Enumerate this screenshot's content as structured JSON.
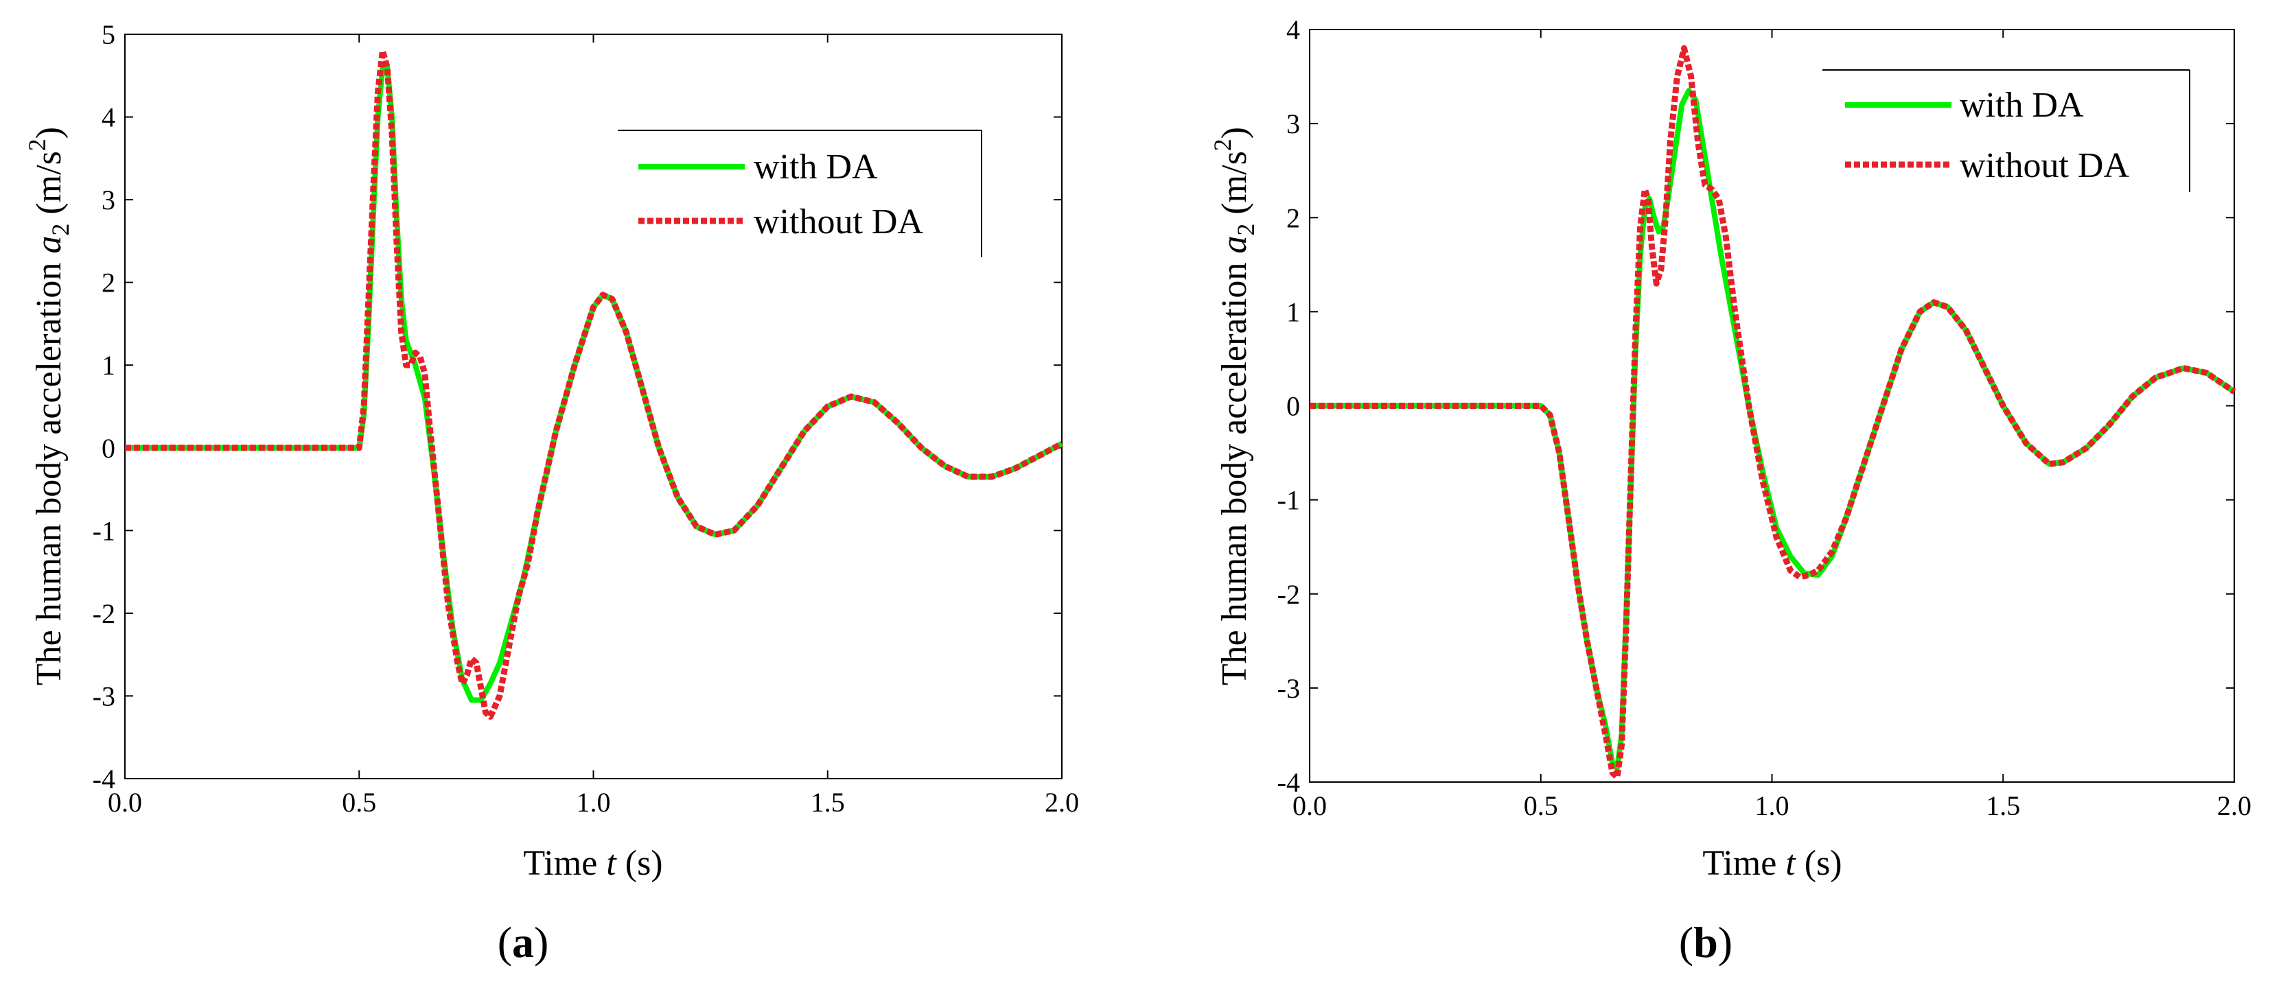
{
  "chart_data": [
    {
      "type": "line",
      "panel_label": "a",
      "x_axis_label": {
        "prefix": "Time ",
        "var": "t",
        "suffix": " (s)"
      },
      "y_axis_label": {
        "prefix": "The human body acceleration ",
        "var": "a",
        "sub": "2",
        "unit_open": "  (m/s",
        "unit_sup": "2",
        "unit_close": ")"
      },
      "xlim": [
        0,
        2
      ],
      "ylim": [
        -4,
        5
      ],
      "x_ticks": [
        "0.0",
        "0.5",
        "1.0",
        "1.5",
        "2.0"
      ],
      "y_ticks": [
        "-4",
        "-3",
        "-2",
        "-1",
        "0",
        "1",
        "2",
        "3",
        "4",
        "5"
      ],
      "legend_position": "upper-right",
      "grid": false,
      "series": [
        {
          "name": "with DA",
          "color": "#00ee00",
          "style": "solid",
          "points": [
            [
              0,
              0
            ],
            [
              0.49,
              0
            ],
            [
              0.5,
              0
            ],
            [
              0.51,
              0.4
            ],
            [
              0.52,
              1.5
            ],
            [
              0.53,
              2.8
            ],
            [
              0.54,
              4.0
            ],
            [
              0.55,
              4.6
            ],
            [
              0.56,
              4.6
            ],
            [
              0.57,
              4.0
            ],
            [
              0.58,
              2.8
            ],
            [
              0.59,
              1.8
            ],
            [
              0.6,
              1.3
            ],
            [
              0.62,
              1.0
            ],
            [
              0.64,
              0.6
            ],
            [
              0.66,
              -0.3
            ],
            [
              0.68,
              -1.3
            ],
            [
              0.7,
              -2.2
            ],
            [
              0.72,
              -2.8
            ],
            [
              0.74,
              -3.05
            ],
            [
              0.76,
              -3.05
            ],
            [
              0.78,
              -2.85
            ],
            [
              0.8,
              -2.6
            ],
            [
              0.82,
              -2.2
            ],
            [
              0.85,
              -1.6
            ],
            [
              0.88,
              -0.8
            ],
            [
              0.92,
              0.2
            ],
            [
              0.96,
              1.0
            ],
            [
              1.0,
              1.7
            ],
            [
              1.02,
              1.85
            ],
            [
              1.04,
              1.8
            ],
            [
              1.07,
              1.4
            ],
            [
              1.1,
              0.8
            ],
            [
              1.14,
              0.0
            ],
            [
              1.18,
              -0.6
            ],
            [
              1.22,
              -0.95
            ],
            [
              1.26,
              -1.05
            ],
            [
              1.3,
              -1.0
            ],
            [
              1.35,
              -0.7
            ],
            [
              1.4,
              -0.25
            ],
            [
              1.45,
              0.2
            ],
            [
              1.5,
              0.5
            ],
            [
              1.55,
              0.62
            ],
            [
              1.6,
              0.55
            ],
            [
              1.65,
              0.3
            ],
            [
              1.7,
              0.0
            ],
            [
              1.75,
              -0.22
            ],
            [
              1.8,
              -0.35
            ],
            [
              1.85,
              -0.35
            ],
            [
              1.9,
              -0.25
            ],
            [
              1.95,
              -0.1
            ],
            [
              2.0,
              0.05
            ]
          ]
        },
        {
          "name": "without DA",
          "color": "#e8202a",
          "style": "dotted",
          "points": [
            [
              0,
              0
            ],
            [
              0.49,
              0
            ],
            [
              0.5,
              0
            ],
            [
              0.51,
              0.5
            ],
            [
              0.52,
              1.8
            ],
            [
              0.53,
              3.1
            ],
            [
              0.54,
              4.3
            ],
            [
              0.55,
              4.8
            ],
            [
              0.56,
              4.6
            ],
            [
              0.57,
              3.8
            ],
            [
              0.58,
              2.5
            ],
            [
              0.59,
              1.4
            ],
            [
              0.6,
              1.0
            ],
            [
              0.61,
              1.0
            ],
            [
              0.62,
              1.15
            ],
            [
              0.63,
              1.1
            ],
            [
              0.64,
              0.9
            ],
            [
              0.65,
              0.3
            ],
            [
              0.67,
              -0.8
            ],
            [
              0.69,
              -1.9
            ],
            [
              0.71,
              -2.6
            ],
            [
              0.72,
              -2.85
            ],
            [
              0.73,
              -2.75
            ],
            [
              0.74,
              -2.55
            ],
            [
              0.75,
              -2.6
            ],
            [
              0.76,
              -2.9
            ],
            [
              0.77,
              -3.2
            ],
            [
              0.78,
              -3.25
            ],
            [
              0.8,
              -3.0
            ],
            [
              0.82,
              -2.4
            ],
            [
              0.84,
              -1.8
            ],
            [
              0.86,
              -1.4
            ],
            [
              0.88,
              -0.8
            ],
            [
              0.92,
              0.2
            ],
            [
              0.96,
              1.0
            ],
            [
              1.0,
              1.7
            ],
            [
              1.02,
              1.85
            ],
            [
              1.04,
              1.8
            ],
            [
              1.07,
              1.4
            ],
            [
              1.1,
              0.8
            ],
            [
              1.14,
              0.0
            ],
            [
              1.18,
              -0.6
            ],
            [
              1.22,
              -0.95
            ],
            [
              1.26,
              -1.05
            ],
            [
              1.3,
              -1.0
            ],
            [
              1.35,
              -0.7
            ],
            [
              1.4,
              -0.25
            ],
            [
              1.45,
              0.2
            ],
            [
              1.5,
              0.5
            ],
            [
              1.55,
              0.62
            ],
            [
              1.6,
              0.55
            ],
            [
              1.65,
              0.3
            ],
            [
              1.7,
              0.0
            ],
            [
              1.75,
              -0.22
            ],
            [
              1.8,
              -0.35
            ],
            [
              1.85,
              -0.35
            ],
            [
              1.9,
              -0.25
            ],
            [
              1.95,
              -0.1
            ],
            [
              2.0,
              0.05
            ]
          ]
        }
      ]
    },
    {
      "type": "line",
      "panel_label": "b",
      "x_axis_label": {
        "prefix": "Time ",
        "var": "t",
        "suffix": " (s)"
      },
      "y_axis_label": {
        "prefix": "The human body acceleration ",
        "var": "a",
        "sub": "2",
        "unit_open": "  (m/s",
        "unit_sup": "2",
        "unit_close": ")"
      },
      "xlim": [
        0,
        2
      ],
      "ylim": [
        -4,
        4
      ],
      "x_ticks": [
        "0.0",
        "0.5",
        "1.0",
        "1.5",
        "2.0"
      ],
      "y_ticks": [
        "-4",
        "-3",
        "-2",
        "-1",
        "0",
        "1",
        "2",
        "3",
        "4"
      ],
      "legend_position": "upper-right",
      "grid": false,
      "series": [
        {
          "name": "with DA",
          "color": "#00ee00",
          "style": "solid",
          "points": [
            [
              0,
              0
            ],
            [
              0.5,
              0
            ],
            [
              0.52,
              -0.1
            ],
            [
              0.54,
              -0.5
            ],
            [
              0.56,
              -1.2
            ],
            [
              0.58,
              -1.9
            ],
            [
              0.6,
              -2.5
            ],
            [
              0.62,
              -3.0
            ],
            [
              0.64,
              -3.4
            ],
            [
              0.655,
              -3.8
            ],
            [
              0.665,
              -3.85
            ],
            [
              0.675,
              -3.5
            ],
            [
              0.685,
              -2.2
            ],
            [
              0.695,
              -0.8
            ],
            [
              0.705,
              0.6
            ],
            [
              0.715,
              1.6
            ],
            [
              0.725,
              2.1
            ],
            [
              0.735,
              2.2
            ],
            [
              0.745,
              2.0
            ],
            [
              0.755,
              1.85
            ],
            [
              0.765,
              1.9
            ],
            [
              0.775,
              2.2
            ],
            [
              0.79,
              2.7
            ],
            [
              0.805,
              3.2
            ],
            [
              0.82,
              3.35
            ],
            [
              0.835,
              3.25
            ],
            [
              0.85,
              2.8
            ],
            [
              0.87,
              2.2
            ],
            [
              0.89,
              1.6
            ],
            [
              0.92,
              0.8
            ],
            [
              0.95,
              0.0
            ],
            [
              0.98,
              -0.7
            ],
            [
              1.01,
              -1.3
            ],
            [
              1.04,
              -1.6
            ],
            [
              1.07,
              -1.78
            ],
            [
              1.1,
              -1.8
            ],
            [
              1.13,
              -1.6
            ],
            [
              1.16,
              -1.2
            ],
            [
              1.2,
              -0.6
            ],
            [
              1.24,
              0.0
            ],
            [
              1.28,
              0.6
            ],
            [
              1.32,
              1.0
            ],
            [
              1.35,
              1.1
            ],
            [
              1.38,
              1.05
            ],
            [
              1.42,
              0.8
            ],
            [
              1.46,
              0.4
            ],
            [
              1.5,
              0.0
            ],
            [
              1.55,
              -0.4
            ],
            [
              1.6,
              -0.62
            ],
            [
              1.63,
              -0.6
            ],
            [
              1.68,
              -0.45
            ],
            [
              1.73,
              -0.2
            ],
            [
              1.78,
              0.1
            ],
            [
              1.83,
              0.3
            ],
            [
              1.89,
              0.4
            ],
            [
              1.94,
              0.35
            ],
            [
              2.0,
              0.15
            ]
          ]
        },
        {
          "name": "without DA",
          "color": "#e8202a",
          "style": "dotted",
          "points": [
            [
              0,
              0
            ],
            [
              0.5,
              0
            ],
            [
              0.52,
              -0.1
            ],
            [
              0.54,
              -0.5
            ],
            [
              0.56,
              -1.2
            ],
            [
              0.58,
              -1.9
            ],
            [
              0.6,
              -2.5
            ],
            [
              0.62,
              -3.0
            ],
            [
              0.64,
              -3.5
            ],
            [
              0.655,
              -3.9
            ],
            [
              0.665,
              -3.95
            ],
            [
              0.675,
              -3.6
            ],
            [
              0.685,
              -2.3
            ],
            [
              0.695,
              -0.7
            ],
            [
              0.705,
              0.8
            ],
            [
              0.715,
              1.9
            ],
            [
              0.725,
              2.3
            ],
            [
              0.732,
              2.2
            ],
            [
              0.74,
              1.7
            ],
            [
              0.75,
              1.3
            ],
            [
              0.76,
              1.45
            ],
            [
              0.77,
              2.0
            ],
            [
              0.78,
              2.8
            ],
            [
              0.795,
              3.5
            ],
            [
              0.81,
              3.8
            ],
            [
              0.825,
              3.5
            ],
            [
              0.84,
              2.8
            ],
            [
              0.855,
              2.35
            ],
            [
              0.87,
              2.3
            ],
            [
              0.885,
              2.2
            ],
            [
              0.9,
              1.8
            ],
            [
              0.92,
              1.0
            ],
            [
              0.95,
              0.0
            ],
            [
              0.98,
              -0.8
            ],
            [
              1.01,
              -1.4
            ],
            [
              1.04,
              -1.75
            ],
            [
              1.06,
              -1.82
            ],
            [
              1.08,
              -1.8
            ],
            [
              1.1,
              -1.75
            ],
            [
              1.13,
              -1.55
            ],
            [
              1.16,
              -1.2
            ],
            [
              1.2,
              -0.6
            ],
            [
              1.24,
              0.0
            ],
            [
              1.28,
              0.6
            ],
            [
              1.32,
              1.0
            ],
            [
              1.35,
              1.1
            ],
            [
              1.38,
              1.05
            ],
            [
              1.42,
              0.8
            ],
            [
              1.46,
              0.4
            ],
            [
              1.5,
              0.0
            ],
            [
              1.55,
              -0.4
            ],
            [
              1.6,
              -0.62
            ],
            [
              1.63,
              -0.6
            ],
            [
              1.68,
              -0.45
            ],
            [
              1.73,
              -0.2
            ],
            [
              1.78,
              0.1
            ],
            [
              1.83,
              0.3
            ],
            [
              1.89,
              0.4
            ],
            [
              1.94,
              0.35
            ],
            [
              2.0,
              0.15
            ]
          ]
        }
      ]
    }
  ]
}
